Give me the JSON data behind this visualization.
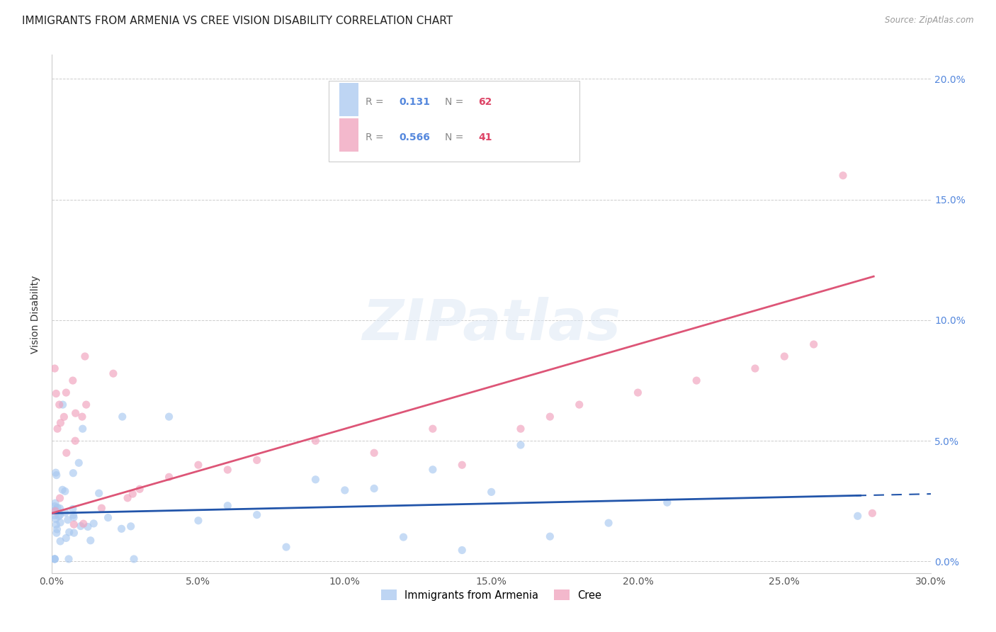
{
  "title": "IMMIGRANTS FROM ARMENIA VS CREE VISION DISABILITY CORRELATION CHART",
  "source": "Source: ZipAtlas.com",
  "ylabel": "Vision Disability",
  "xlim": [
    0.0,
    0.3
  ],
  "ylim": [
    -0.005,
    0.21
  ],
  "xticks": [
    0.0,
    0.05,
    0.1,
    0.15,
    0.2,
    0.25,
    0.3
  ],
  "xtick_labels": [
    "0.0%",
    "5.0%",
    "10.0%",
    "15.0%",
    "20.0%",
    "25.0%",
    "30.0%"
  ],
  "yticks": [
    0.0,
    0.05,
    0.1,
    0.15,
    0.2
  ],
  "ytick_labels_right": [
    "0.0%",
    "5.0%",
    "10.0%",
    "15.0%",
    "20.0%"
  ],
  "watermark": "ZIPatlas",
  "armenia_color": "#a8c8f0",
  "cree_color": "#f0a0bc",
  "armenia_line_color": "#2255aa",
  "cree_line_color": "#dd5577",
  "background_color": "#ffffff",
  "grid_color": "#cccccc",
  "right_tick_color": "#5588dd",
  "title_fontsize": 11,
  "axis_label_fontsize": 10,
  "tick_fontsize": 10,
  "legend_R_color": "#5588dd",
  "legend_N_color": "#dd4466",
  "legend_label_color": "#888888"
}
